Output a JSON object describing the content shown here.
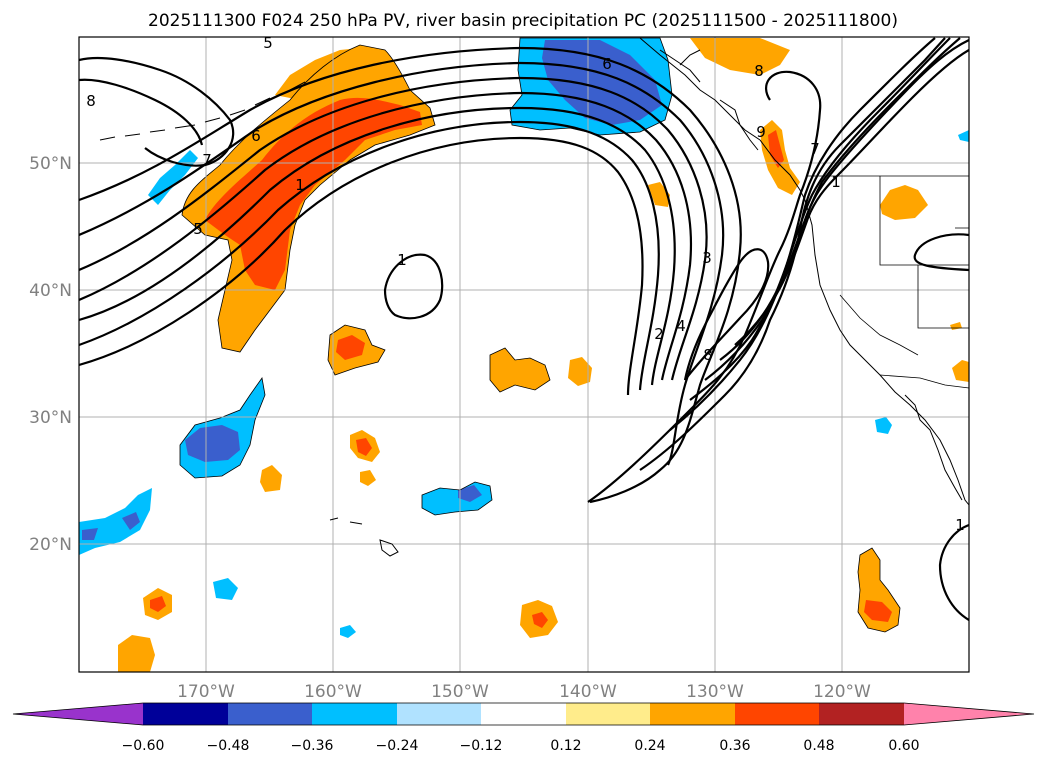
{
  "title": "2025111300 F024 250 hPa PV, river basin precipitation PC (2025111500 - 2025111800)",
  "colors": {
    "neg_extreme": "#9933cc",
    "neg_060": "#000099",
    "neg_048": "#3a5fcd",
    "neg_036": "#00bfff",
    "neg_024": "#b0e2ff",
    "neutral": "#ffffff",
    "pos_012": "#ffec8b",
    "pos_024": "#ffa500",
    "pos_036": "#ff4500",
    "pos_048": "#b22222",
    "pos_extreme": "#ff82ab"
  },
  "map": {
    "lon_labels": [
      "170°W",
      "160°W",
      "150°W",
      "140°W",
      "130°W",
      "120°W"
    ],
    "lat_labels": [
      "50°N",
      "40°N",
      "30°N",
      "20°N"
    ],
    "contour_labels": [
      "5",
      "6",
      "8",
      "7",
      "1",
      "5",
      "1",
      "6",
      "8",
      "9",
      "7",
      "3",
      "2",
      "4",
      "8",
      "1",
      "1"
    ]
  },
  "colorbar": {
    "tick_labels": [
      "−0.60",
      "−0.48",
      "−0.36",
      "−0.24",
      "−0.12",
      "0.12",
      "0.24",
      "0.36",
      "0.48",
      "0.60"
    ]
  }
}
